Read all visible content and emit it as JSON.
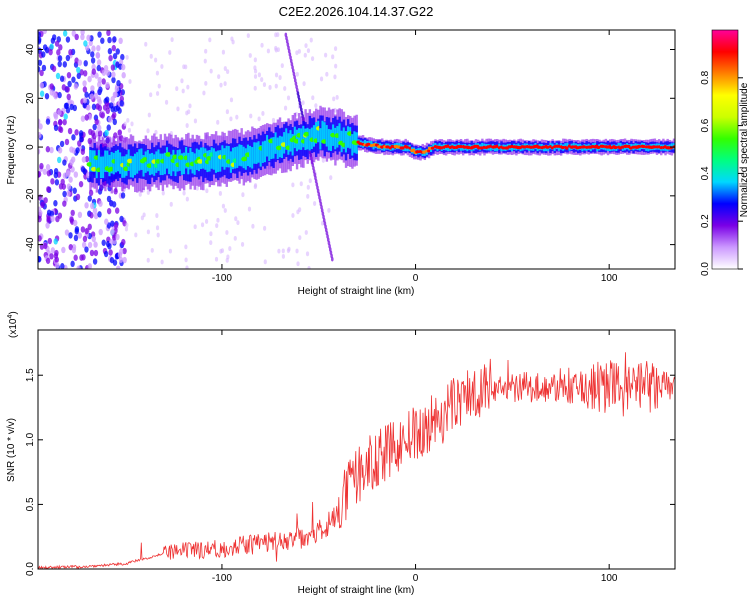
{
  "figure": {
    "title": "C2E2.2026.104.14.37.G22"
  },
  "chart_data": [
    {
      "type": "heatmap",
      "title": "C2E2.2026.104.14.37.G22",
      "xlabel": "Height of straight line (km)",
      "ylabel": "Frequency (Hz)",
      "xlim": [
        -195,
        134
      ],
      "ylim": [
        -50,
        48
      ],
      "x_ticks": [
        -100,
        0,
        100
      ],
      "x_tick_labels": [
        "-100",
        "0",
        "100"
      ],
      "y_ticks": [
        -40,
        -20,
        0,
        20,
        40
      ],
      "y_tick_labels": [
        "-40",
        "-20",
        "0",
        "20",
        "40"
      ],
      "ridge": {
        "x": [
          -165,
          -150,
          -130,
          -110,
          -95,
          -80,
          -70,
          -60,
          -50,
          -40,
          -30,
          -25,
          -20,
          -15,
          -10,
          -5,
          0,
          5,
          10,
          20,
          40,
          60,
          80,
          100,
          120,
          134
        ],
        "y": [
          -7,
          -7,
          -6,
          -6,
          -5,
          -2,
          1,
          3,
          5,
          4,
          2,
          1,
          0.5,
          0,
          0,
          0,
          -2,
          -2,
          0,
          0,
          0,
          0,
          0,
          0,
          0,
          0
        ]
      },
      "colorbar": {
        "label": "Normalized spectral amplitude",
        "range": [
          0.0,
          1.0
        ],
        "ticks": [
          0.0,
          0.2,
          0.4,
          0.6,
          0.8
        ],
        "tick_labels": [
          "0.0",
          "0.2",
          "0.4",
          "0.6",
          "0.8"
        ],
        "colors": [
          "#ffffff",
          "#cc99ff",
          "#7a00e6",
          "#0000ff",
          "#00d8ff",
          "#00ff80",
          "#33ff00",
          "#ccff00",
          "#ffff00",
          "#ff8000",
          "#ff0000",
          "#ff0099"
        ]
      }
    },
    {
      "type": "line",
      "xlabel": "Height of straight line (km)",
      "ylabel": "SNR (10 * v/v)",
      "scale_label": "(x10",
      "scale_exp": "4",
      "xlim": [
        -195,
        134
      ],
      "ylim": [
        0,
        1.85
      ],
      "x_ticks": [
        -100,
        0,
        100
      ],
      "x_tick_labels": [
        "-100",
        "0",
        "100"
      ],
      "y_ticks": [
        0,
        0.5,
        1.0,
        1.5
      ],
      "y_tick_labels": [
        "0.0",
        "0.5",
        "1.0",
        "1.5"
      ],
      "series": [
        {
          "name": "SNR",
          "color": "#ee3333",
          "x": [
            -195,
            -170,
            -150,
            -140,
            -130,
            -120,
            -110,
            -100,
            -90,
            -80,
            -70,
            -60,
            -50,
            -45,
            -40,
            -35,
            -30,
            -25,
            -20,
            -15,
            -10,
            -5,
            0,
            5,
            10,
            15,
            20,
            25,
            30,
            35,
            40,
            50,
            60,
            70,
            80,
            90,
            100,
            110,
            120,
            134
          ],
          "y": [
            0.01,
            0.02,
            0.04,
            0.08,
            0.12,
            0.14,
            0.15,
            0.16,
            0.18,
            0.2,
            0.22,
            0.24,
            0.3,
            0.35,
            0.45,
            0.6,
            0.72,
            0.8,
            0.85,
            0.9,
            0.95,
            1.0,
            1.05,
            1.1,
            1.15,
            1.2,
            1.28,
            1.33,
            1.38,
            1.4,
            1.42,
            1.4,
            1.41,
            1.4,
            1.39,
            1.4,
            1.42,
            1.38,
            1.4,
            1.42
          ]
        }
      ]
    }
  ]
}
